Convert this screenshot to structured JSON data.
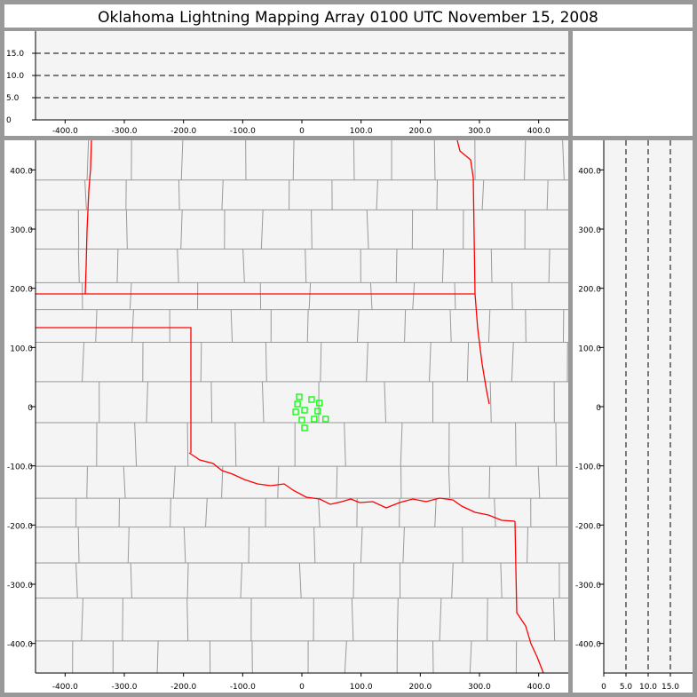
{
  "title": "Oklahoma Lightning Mapping Array   0100 UTC  November 15, 2008",
  "colors": {
    "frame": "#999999",
    "panel": "#ffffff",
    "plot_bg": "#f4f4f4",
    "county": "#999999",
    "state": "#ff0000",
    "source": "#00ff00",
    "dash": "#000000"
  },
  "top_panel": {
    "xticks": [
      "-400.0",
      "-300.0",
      "-200.0",
      "-100.0",
      "0",
      "100.0",
      "200.0",
      "300.0",
      "400.0"
    ],
    "xtick_values": [
      -400,
      -300,
      -200,
      -100,
      0,
      100,
      200,
      300,
      400
    ],
    "yticks": [
      "0",
      "5.0",
      "10.0",
      "15.0"
    ],
    "ytick_values": [
      0,
      5,
      10,
      15
    ],
    "xlim": [
      -450,
      450
    ],
    "ylim": [
      0,
      20
    ],
    "dashed_levels": [
      5,
      10,
      15
    ]
  },
  "main_panel": {
    "xticks": [
      "-400.0",
      "-300.0",
      "-200.0",
      "-100.0",
      "0",
      "100.0",
      "200.0",
      "300.0",
      "400.0"
    ],
    "xtick_values": [
      -400,
      -300,
      -200,
      -100,
      0,
      100,
      200,
      300,
      400
    ],
    "yticks": [
      "400.0",
      "300.0",
      "200.0",
      "100.0",
      "0",
      "-100.0",
      "-200.0",
      "-300.0",
      "-400.0"
    ],
    "ytick_values": [
      400,
      300,
      200,
      100,
      0,
      -100,
      -200,
      -300,
      -400
    ],
    "xlim": [
      -450,
      450
    ],
    "ylim": [
      -450,
      450
    ],
    "sources": [
      {
        "x": -4.5,
        "y": 16.5
      },
      {
        "x": 16.4,
        "y": 12.0
      },
      {
        "x": 29.7,
        "y": 6.0
      },
      {
        "x": -7.4,
        "y": 4.5
      },
      {
        "x": 4.5,
        "y": -6.0
      },
      {
        "x": -10.4,
        "y": -9.0
      },
      {
        "x": 26.8,
        "y": -7.5
      },
      {
        "x": 0,
        "y": -22.5
      },
      {
        "x": 20.8,
        "y": -21.0
      },
      {
        "x": 40.1,
        "y": -21.0
      },
      {
        "x": 4.5,
        "y": -36.0
      }
    ]
  },
  "right_panel": {
    "xticks": [
      "0",
      "5.0",
      "10.0",
      "15.0"
    ],
    "xtick_values": [
      0,
      5,
      10,
      15
    ],
    "yticks": [
      "400.0",
      "300.0",
      "200.0",
      "100.0",
      "0",
      "-100.0",
      "-200.0",
      "-300.0",
      "-400.0"
    ],
    "ytick_values": [
      400,
      300,
      200,
      100,
      0,
      -100,
      -200,
      -300,
      -400
    ],
    "xlim": [
      0,
      20
    ],
    "ylim": [
      -450,
      450
    ],
    "dashed_levels": [
      5,
      10,
      15
    ]
  }
}
